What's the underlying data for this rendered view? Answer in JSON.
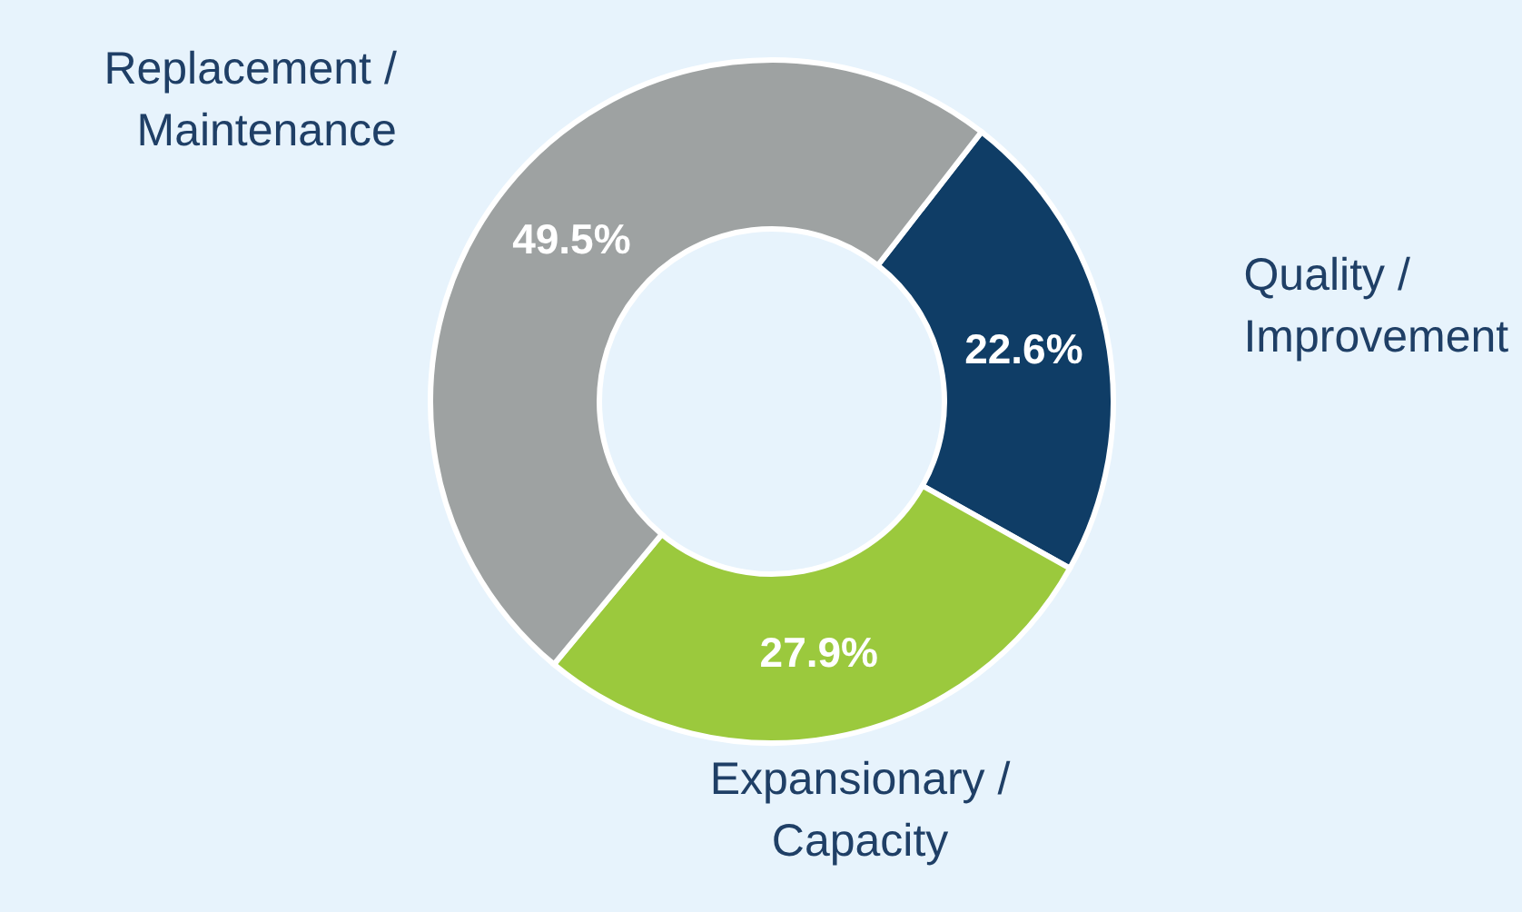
{
  "chart_data": {
    "type": "donut",
    "categories": [
      "Quality / Improvement",
      "Expansionary / Capacity",
      "Replacement / Maintenance"
    ],
    "values": [
      22.6,
      27.9,
      49.5
    ],
    "colors": [
      "#0f3d66",
      "#9bc93d",
      "#9ea2a2"
    ],
    "value_labels": [
      "22.6%",
      "27.9%",
      "49.5%"
    ]
  }
}
